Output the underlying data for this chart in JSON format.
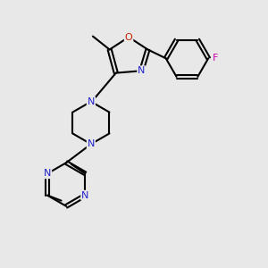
{
  "bg_color": "#e8e8e8",
  "bond_color": "#000000",
  "n_color": "#2222cc",
  "o_color": "#cc2200",
  "f_color": "#cc00aa",
  "lw": 1.5,
  "fs": 8.0,
  "xlim": [
    0,
    10
  ],
  "ylim": [
    0,
    10
  ]
}
